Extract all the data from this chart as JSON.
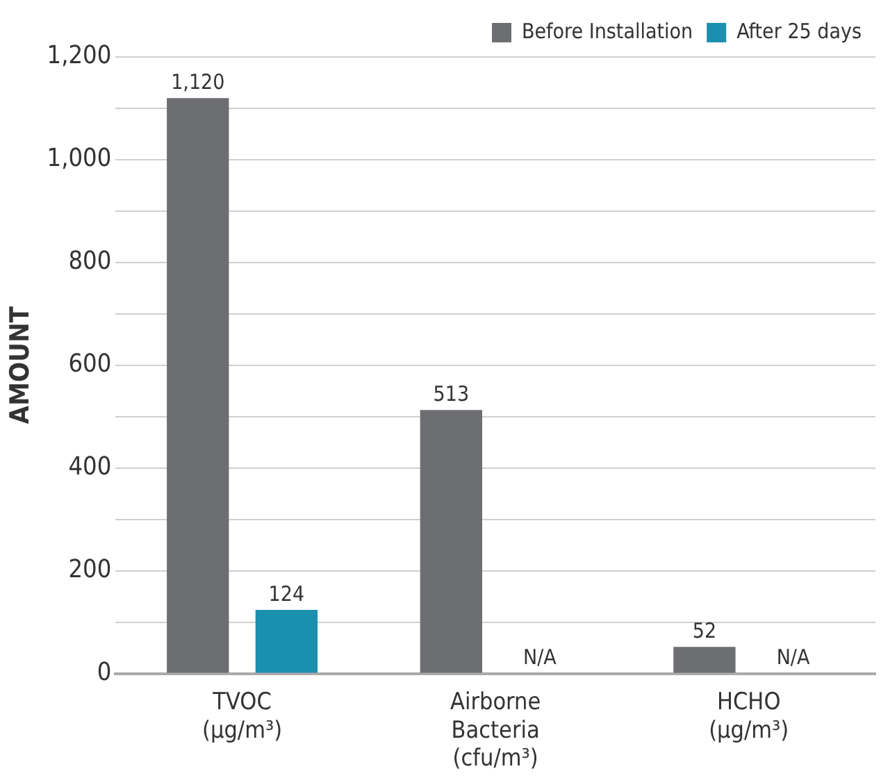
{
  "chart_data": {
    "type": "bar",
    "ylabel": "AMOUNT",
    "categories": [
      "TVOC\n(μg/m³)",
      "Airborne\nBacteria\n(cfu/m³)",
      "HCHO\n(μg/m³)"
    ],
    "series": [
      {
        "name": "Before Installation",
        "color": "#6d6e71",
        "values": [
          1120,
          513,
          52
        ],
        "value_labels": [
          "1,120",
          "513",
          "52"
        ]
      },
      {
        "name": "After 25 days",
        "color": "#1a8fae",
        "values": [
          124,
          null,
          null
        ],
        "value_labels": [
          "124",
          "N/A",
          "N/A"
        ]
      }
    ],
    "ylim": [
      0,
      1200
    ],
    "yticks": [
      0,
      {
        "value": 100,
        "label": null
      },
      {
        "value": 200,
        "label": "200"
      },
      {
        "value": 300,
        "label": null
      },
      {
        "value": 400,
        "label": "400"
      },
      {
        "value": 500,
        "label": null
      },
      {
        "value": 600,
        "label": "600"
      },
      {
        "value": 700,
        "label": null
      },
      {
        "value": 800,
        "label": "800"
      },
      {
        "value": 900,
        "label": null
      },
      {
        "value": 1000,
        "label": "1,000"
      },
      {
        "value": 1100,
        "label": null
      },
      {
        "value": 1200,
        "label": "1,200"
      }
    ],
    "grid": "y",
    "legend": "top right"
  }
}
